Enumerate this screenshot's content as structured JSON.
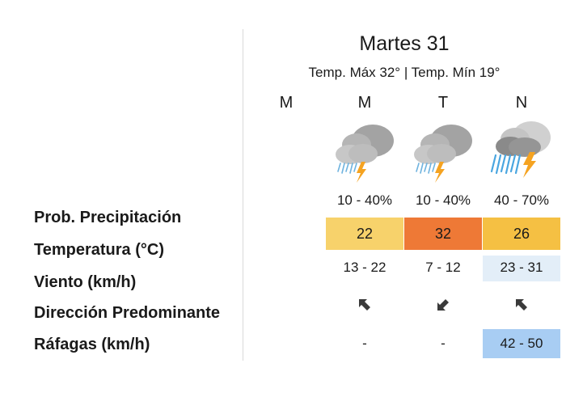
{
  "day": {
    "title": "Martes 31",
    "summary": "Temp. Máx 32° | Temp. Mín 19°"
  },
  "row_labels": {
    "precip": "Prob. Precipitación",
    "temperature": "Temperatura (°C)",
    "wind": "Viento (km/h)",
    "direction": "Dirección Predominante",
    "gusts": "Ráfagas (km/h)"
  },
  "periods": [
    {
      "label": "M",
      "icon": "none",
      "precip": "",
      "temperature": "",
      "temp_color": "",
      "wind": "",
      "wind_bg": "",
      "direction": "none",
      "gusts": "",
      "gust_bg": ""
    },
    {
      "label": "M",
      "icon": "storm-light-rain-icon",
      "precip": "10 - 40%",
      "temperature": "22",
      "temp_color": "#f7d26b",
      "wind": "13 - 22",
      "wind_bg": "",
      "direction": "northwest-arrow",
      "gusts": "-",
      "gust_bg": ""
    },
    {
      "label": "T",
      "icon": "storm-light-rain-icon",
      "precip": "10 - 40%",
      "temperature": "32",
      "temp_color": "#ee7936",
      "wind": "7 - 12",
      "wind_bg": "",
      "direction": "southwest-arrow",
      "gusts": "-",
      "gust_bg": ""
    },
    {
      "label": "N",
      "icon": "storm-heavy-rain-icon",
      "precip": "40 - 70%",
      "temperature": "26",
      "temp_color": "#f5c043",
      "wind": "23 - 31",
      "wind_bg": "#e3eef8",
      "direction": "northwest-arrow",
      "gusts": "42 - 50",
      "gust_bg": "#a8cdf3"
    }
  ]
}
